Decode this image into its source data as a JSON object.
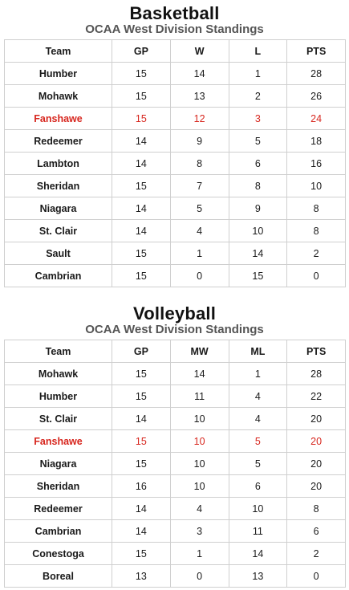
{
  "colors": {
    "highlight": "#d7261e",
    "border": "#cfcfcf",
    "subtitle": "#555555"
  },
  "basketball": {
    "title": "Basketball",
    "subtitle": "OCAA West Division Standings",
    "headers": [
      "Team",
      "GP",
      "W",
      "L",
      "PTS"
    ],
    "rows": [
      {
        "team": "Humber",
        "cells": [
          "15",
          "14",
          "1",
          "28"
        ],
        "highlight": false
      },
      {
        "team": "Mohawk",
        "cells": [
          "15",
          "13",
          "2",
          "26"
        ],
        "highlight": false
      },
      {
        "team": "Fanshawe",
        "cells": [
          "15",
          "12",
          "3",
          "24"
        ],
        "highlight": true
      },
      {
        "team": "Redeemer",
        "cells": [
          "14",
          "9",
          "5",
          "18"
        ],
        "highlight": false
      },
      {
        "team": "Lambton",
        "cells": [
          "14",
          "8",
          "6",
          "16"
        ],
        "highlight": false
      },
      {
        "team": "Sheridan",
        "cells": [
          "15",
          "7",
          "8",
          "10"
        ],
        "highlight": false
      },
      {
        "team": "Niagara",
        "cells": [
          "14",
          "5",
          "9",
          "8"
        ],
        "highlight": false
      },
      {
        "team": "St. Clair",
        "cells": [
          "14",
          "4",
          "10",
          "8"
        ],
        "highlight": false
      },
      {
        "team": "Sault",
        "cells": [
          "15",
          "1",
          "14",
          "2"
        ],
        "highlight": false
      },
      {
        "team": "Cambrian",
        "cells": [
          "15",
          "0",
          "15",
          "0"
        ],
        "highlight": false
      }
    ]
  },
  "volleyball": {
    "title": "Volleyball",
    "subtitle": "OCAA West Division Standings",
    "headers": [
      "Team",
      "GP",
      "MW",
      "ML",
      "PTS"
    ],
    "rows": [
      {
        "team": "Mohawk",
        "cells": [
          "15",
          "14",
          "1",
          "28"
        ],
        "highlight": false
      },
      {
        "team": "Humber",
        "cells": [
          "15",
          "11",
          "4",
          "22"
        ],
        "highlight": false
      },
      {
        "team": "St. Clair",
        "cells": [
          "14",
          "10",
          "4",
          "20"
        ],
        "highlight": false
      },
      {
        "team": "Fanshawe",
        "cells": [
          "15",
          "10",
          "5",
          "20"
        ],
        "highlight": true
      },
      {
        "team": "Niagara",
        "cells": [
          "15",
          "10",
          "5",
          "20"
        ],
        "highlight": false
      },
      {
        "team": "Sheridan",
        "cells": [
          "16",
          "10",
          "6",
          "20"
        ],
        "highlight": false
      },
      {
        "team": "Redeemer",
        "cells": [
          "14",
          "4",
          "10",
          "8"
        ],
        "highlight": false
      },
      {
        "team": "Cambrian",
        "cells": [
          "14",
          "3",
          "11",
          "6"
        ],
        "highlight": false
      },
      {
        "team": "Conestoga",
        "cells": [
          "15",
          "1",
          "14",
          "2"
        ],
        "highlight": false
      },
      {
        "team": "Boreal",
        "cells": [
          "13",
          "0",
          "13",
          "0"
        ],
        "highlight": false
      }
    ]
  }
}
